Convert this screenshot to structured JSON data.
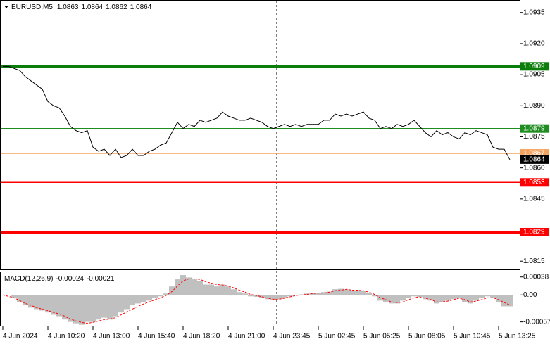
{
  "chart_data": [
    {
      "type": "line",
      "title": "EURUSD,M5",
      "ohlc": [
        1.0863,
        1.0864,
        1.0862,
        1.0864
      ],
      "categories": [
        "4 Jun 2024",
        null,
        null,
        null,
        null,
        null,
        null,
        null,
        "4 Jun 10:20",
        null,
        null,
        null,
        null,
        null,
        null,
        null,
        "4 Jun 13:00",
        null,
        null,
        null,
        null,
        null,
        null,
        null,
        "4 Jun 15:40",
        null,
        null,
        null,
        null,
        null,
        null,
        null,
        "4 Jun 18:20",
        null,
        null,
        null,
        null,
        null,
        null,
        null,
        "4 Jun 21:00",
        null,
        null,
        null,
        null,
        null,
        null,
        null,
        "4 Jun 23:45",
        null,
        null,
        null,
        null,
        null,
        null,
        null,
        "5 Jun 02:45",
        null,
        null,
        null,
        null,
        null,
        null,
        null,
        "5 Jun 05:25",
        null,
        null,
        null,
        null,
        null,
        null,
        null,
        "5 Jun 08:05",
        null,
        null,
        null,
        null,
        null,
        null,
        null,
        "5 Jun 10:45",
        null,
        null,
        null,
        null,
        null,
        null,
        null,
        "5 Jun 13:25",
        null,
        null
      ],
      "values": [
        1.0909,
        1.0909,
        1.0908,
        1.0907,
        1.0904,
        1.0902,
        1.09,
        1.0898,
        1.0892,
        1.089,
        1.0889,
        1.0885,
        1.088,
        1.0878,
        1.0877,
        1.0878,
        1.087,
        1.0868,
        1.0869,
        1.0866,
        1.0869,
        1.0865,
        1.0866,
        1.0869,
        1.0866,
        1.0866,
        1.0868,
        1.0869,
        1.0871,
        1.0872,
        1.0877,
        1.0882,
        1.0879,
        1.0881,
        1.088,
        1.0883,
        1.0882,
        1.0883,
        1.0884,
        1.0887,
        1.0885,
        1.0884,
        1.0883,
        1.0883,
        1.0884,
        1.0883,
        1.0882,
        1.088,
        1.0879,
        1.088,
        1.0881,
        1.088,
        1.0881,
        1.088,
        1.0881,
        1.0881,
        1.0881,
        1.0883,
        1.0883,
        1.0886,
        1.0885,
        1.0886,
        1.0885,
        1.0886,
        1.0887,
        1.0884,
        1.0883,
        1.0879,
        1.088,
        1.0879,
        1.0881,
        1.088,
        1.0881,
        1.0883,
        1.088,
        1.0877,
        1.0875,
        1.0878,
        1.0876,
        1.0877,
        1.0875,
        1.0874,
        1.0877,
        1.0876,
        1.0878,
        1.0877,
        1.0876,
        1.087,
        1.0869,
        1.0869,
        1.0864
      ],
      "color": "#000000",
      "ylim": [
        1.0811,
        1.094
      ],
      "yticks": [
        1.0935,
        {
          "value": 1.092,
          "label": "1.0920"
        },
        1.0905,
        {
          "value": 1.089,
          "label": "1.0890"
        },
        1.0875,
        {
          "value": 1.086,
          "label": "1.0860"
        },
        1.0845,
        1.0815
      ],
      "levels": [
        {
          "value": 1.0909,
          "color": "#0b7d0b",
          "thick": true
        },
        {
          "value": 1.0879,
          "color": "#1e8c1e",
          "thick": false
        },
        {
          "value": 1.0867,
          "color": "#f4a460",
          "thick": false
        },
        {
          "value": 1.0853,
          "color": "#ff0000",
          "thick": false
        },
        {
          "value": 1.0829,
          "color": "#ff0000",
          "thick": true
        }
      ],
      "last_price": {
        "value": 1.0864,
        "color": "#000000"
      }
    },
    {
      "type": "macd",
      "title": "MACD(12,26,9)",
      "header_values": [
        -0.00024,
        -0.00021
      ],
      "histogram": {
        "color": "#c0c0c0",
        "values": [
          0,
          0,
          -7e-05,
          -0.00015,
          -0.00022,
          -0.00027,
          -0.0003,
          -0.00033,
          -0.00037,
          -0.00042,
          -0.00045,
          -0.00052,
          -0.00057,
          -0.0006,
          -0.00063,
          -0.00057,
          -0.00057,
          -0.00052,
          -0.00048,
          -0.00052,
          -0.00045,
          -0.00037,
          -0.0003,
          -0.00022,
          -0.00018,
          -0.00015,
          -0.00012,
          -7e-05,
          -3e-05,
          3e-05,
          0.00018,
          0.00033,
          0.00042,
          0.00037,
          0.00033,
          0.0003,
          0.00022,
          0.00022,
          0.00018,
          0.00022,
          0.00018,
          0.00012,
          6e-05,
          3e-05,
          -3e-05,
          -4e-05,
          -7e-05,
          -9e-05,
          -0.0001,
          -9e-05,
          -6e-05,
          -3e-05,
          0,
          1e-05,
          3e-05,
          4e-05,
          4e-05,
          6e-05,
          7e-05,
          0.00012,
          0.00013,
          0.00012,
          0.0001,
          0.0001,
          9e-05,
          4e-05,
          -3e-05,
          -0.00012,
          -0.00015,
          -0.00018,
          -0.00018,
          -0.00012,
          -6e-05,
          -3e-05,
          -4e-05,
          -9e-05,
          -0.00012,
          -0.00018,
          -0.00015,
          -0.00012,
          -9e-05,
          -6e-05,
          -0.00015,
          -0.00018,
          -0.00012,
          -7e-05,
          -3e-05,
          -6e-05,
          -0.00015,
          -0.00024,
          -0.00024
        ]
      },
      "signal": {
        "color": "#ff0000",
        "values": [
          0,
          -3e-05,
          -6e-05,
          -0.00012,
          -0.00018,
          -0.00022,
          -0.00027,
          -0.0003,
          -0.00033,
          -0.00037,
          -0.0004,
          -0.00045,
          -0.00051,
          -0.00055,
          -0.00058,
          -0.0006,
          -0.00058,
          -0.00055,
          -0.00052,
          -0.00051,
          -0.00048,
          -0.00042,
          -0.00036,
          -0.0003,
          -0.00024,
          -0.00019,
          -0.00015,
          -0.0001,
          -6e-05,
          -1e-05,
          7e-05,
          0.00019,
          0.0003,
          0.00034,
          0.00034,
          0.00033,
          0.00028,
          0.00025,
          0.00022,
          0.00021,
          0.00019,
          0.00015,
          0.0001,
          6e-05,
          1e-05,
          -1e-05,
          -4e-05,
          -7e-05,
          -9e-05,
          -9e-05,
          -7e-05,
          -4e-05,
          -1e-05,
          0,
          1e-05,
          3e-05,
          4e-05,
          4e-05,
          6e-05,
          9e-05,
          0.0001,
          0.00012,
          0.0001,
          0.0001,
          9e-05,
          6e-05,
          1e-05,
          -6e-05,
          -0.0001,
          -0.00015,
          -0.00016,
          -0.00015,
          -0.0001,
          -6e-05,
          -4e-05,
          -7e-05,
          -0.0001,
          -0.00015,
          -0.00015,
          -0.00013,
          -0.0001,
          -7e-05,
          -0.0001,
          -0.00015,
          -0.00013,
          -0.0001,
          -6e-05,
          -6e-05,
          -0.0001,
          -0.00016,
          -0.00021
        ]
      },
      "ylim": [
        -0.00065,
        0.00048
      ],
      "yticks": [
        0.00038,
        {
          "value": 0,
          "label": "0.00"
        },
        -0.00057
      ]
    }
  ]
}
